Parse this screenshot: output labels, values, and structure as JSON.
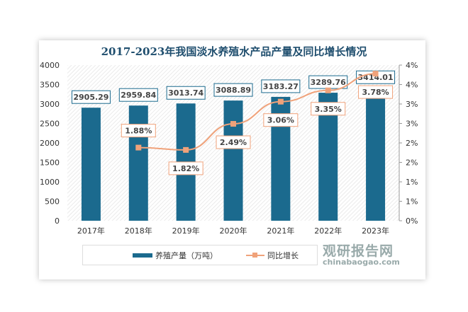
{
  "chart_data": {
    "type": "bar+line",
    "title": "2017-2023年我国淡水养殖水产品产量及同比增长情况",
    "categories": [
      "2017年",
      "2018年",
      "2019年",
      "2020年",
      "2021年",
      "2022年",
      "2023年"
    ],
    "series": [
      {
        "name": "养殖产量（万吨）",
        "type": "bar",
        "axis": "left",
        "color": "#1b6a8e",
        "values": [
          2905.29,
          2959.84,
          3013.74,
          3088.89,
          3183.27,
          3289.76,
          3414.01
        ],
        "labels": [
          "2905.29",
          "2959.84",
          "3013.74",
          "3088.89",
          "3183.27",
          "3289.76",
          "3414.01"
        ]
      },
      {
        "name": "同比增长",
        "type": "line",
        "axis": "right",
        "color": "#f0a27a",
        "values": [
          null,
          1.88,
          1.82,
          2.49,
          3.06,
          3.35,
          3.78
        ],
        "labels": [
          "",
          "1.88%",
          "1.82%",
          "2.49%",
          "3.06%",
          "3.35%",
          "3.78%"
        ]
      }
    ],
    "left_axis": {
      "ylim": [
        0,
        4000
      ],
      "ticks": [
        "0",
        "500",
        "1000",
        "1500",
        "2000",
        "2500",
        "3000",
        "3500",
        "4000"
      ]
    },
    "right_axis": {
      "ylim": [
        0,
        4
      ],
      "unit": "%",
      "ticks": [
        "0%",
        "1%",
        "1%",
        "2%",
        "2%",
        "3%",
        "3%",
        "4%",
        "4%"
      ]
    },
    "legend": "bottom",
    "grid": false
  },
  "watermark": {
    "name": "观研报告网",
    "url": "chinabaogao.com"
  }
}
